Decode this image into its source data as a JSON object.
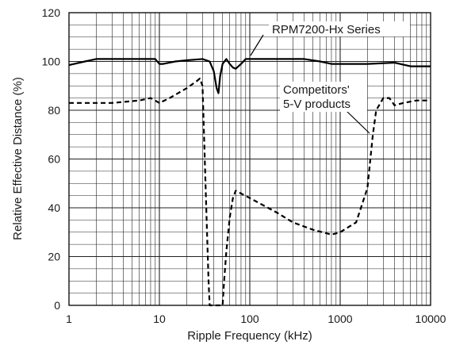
{
  "chart_data": {
    "type": "line",
    "x_scale": "log",
    "xlim": [
      1,
      10000
    ],
    "ylim": [
      0,
      120
    ],
    "xlabel": "Ripple Frequency (kHz)",
    "ylabel": "Relative Effective Distance (%)",
    "x_ticks": [
      "1",
      "10",
      "100",
      "1000",
      "10000"
    ],
    "y_ticks": [
      "0",
      "20",
      "40",
      "60",
      "80",
      "100",
      "120"
    ],
    "grid": true,
    "series": [
      {
        "name": "RPM7200-Hx Series",
        "style": "solid",
        "points": [
          [
            1,
            98.5
          ],
          [
            1.5,
            100
          ],
          [
            2,
            101
          ],
          [
            5,
            101
          ],
          [
            9,
            101
          ],
          [
            10,
            99
          ],
          [
            11,
            99
          ],
          [
            15,
            100
          ],
          [
            20,
            100.5
          ],
          [
            30,
            101
          ],
          [
            36,
            100
          ],
          [
            40,
            96
          ],
          [
            43,
            89
          ],
          [
            45,
            87
          ],
          [
            47,
            94
          ],
          [
            50,
            99
          ],
          [
            55,
            101
          ],
          [
            60,
            99
          ],
          [
            65,
            97.5
          ],
          [
            70,
            97
          ],
          [
            80,
            99
          ],
          [
            90,
            101
          ],
          [
            100,
            101
          ],
          [
            200,
            101
          ],
          [
            400,
            101
          ],
          [
            600,
            100
          ],
          [
            800,
            99
          ],
          [
            1000,
            99
          ],
          [
            2000,
            99
          ],
          [
            4000,
            99.5
          ],
          [
            6000,
            98
          ],
          [
            10000,
            98
          ]
        ]
      },
      {
        "name": "Competitors' 5-V products",
        "style": "dashed",
        "points": [
          [
            1,
            83
          ],
          [
            3,
            83
          ],
          [
            6,
            84
          ],
          [
            8,
            85
          ],
          [
            10,
            83
          ],
          [
            13,
            85
          ],
          [
            20,
            89
          ],
          [
            26,
            92
          ],
          [
            28,
            93
          ],
          [
            30,
            90
          ],
          [
            33,
            40
          ],
          [
            35,
            10
          ],
          [
            36,
            0
          ],
          [
            38,
            0
          ],
          [
            40,
            0
          ],
          [
            50,
            0
          ],
          [
            52,
            10
          ],
          [
            55,
            22
          ],
          [
            60,
            36
          ],
          [
            65,
            44
          ],
          [
            70,
            47
          ],
          [
            100,
            44
          ],
          [
            200,
            38
          ],
          [
            300,
            34
          ],
          [
            500,
            31
          ],
          [
            800,
            29
          ],
          [
            1000,
            30
          ],
          [
            1500,
            34
          ],
          [
            2000,
            48
          ],
          [
            2300,
            70
          ],
          [
            2500,
            80
          ],
          [
            3000,
            85
          ],
          [
            3500,
            85
          ],
          [
            4000,
            82
          ],
          [
            5000,
            83
          ],
          [
            7000,
            84
          ],
          [
            10000,
            84
          ]
        ]
      }
    ],
    "annotations": [
      {
        "text": "RPM7200-Hx Series",
        "points_to": [
          35,
          101
        ]
      },
      {
        "text": "Competitors'",
        "points_to": [
          2200,
          50
        ]
      },
      {
        "text": "5-V products",
        "points_to": [
          2200,
          50
        ]
      }
    ]
  }
}
